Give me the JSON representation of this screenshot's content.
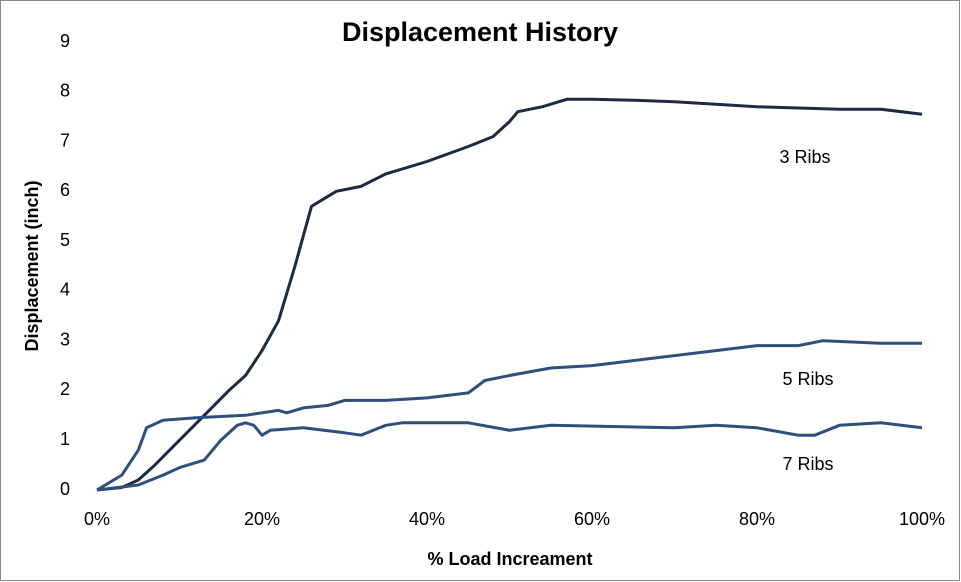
{
  "chart_data": {
    "type": "line",
    "title": "Displacement History",
    "xlabel": "% Load Increament",
    "ylabel": "Displacement (inch)",
    "xlim": [
      0,
      100
    ],
    "xticks": [
      {
        "value": 0,
        "label": "0%"
      },
      {
        "value": 20,
        "label": "20%"
      },
      {
        "value": 40,
        "label": "40%"
      },
      {
        "value": 60,
        "label": "60%"
      },
      {
        "value": 80,
        "label": "80%"
      },
      {
        "value": 100,
        "label": "100%"
      }
    ],
    "ylim": [
      0,
      9
    ],
    "yticks": [
      0,
      1,
      2,
      3,
      4,
      5,
      6,
      7,
      8,
      9
    ],
    "grid": false,
    "series": [
      {
        "name": "3 Ribs",
        "color": "#1c2a45",
        "x": [
          0,
          3,
          5,
          7,
          10,
          13,
          16,
          18,
          20,
          22,
          24,
          26,
          27,
          29,
          32,
          35,
          40,
          45,
          48,
          50,
          51,
          54,
          57,
          60,
          65,
          70,
          75,
          80,
          90,
          95,
          100
        ],
        "values": [
          0,
          0.05,
          0.2,
          0.5,
          1.0,
          1.5,
          2.0,
          2.3,
          2.8,
          3.4,
          4.5,
          5.7,
          5.8,
          6.0,
          6.1,
          6.35,
          6.6,
          6.9,
          7.1,
          7.4,
          7.6,
          7.7,
          7.85,
          7.85,
          7.83,
          7.8,
          7.75,
          7.7,
          7.65,
          7.65,
          7.55
        ]
      },
      {
        "name": "5 Ribs",
        "color": "#2e4f7c",
        "x": [
          0,
          3,
          5,
          6,
          8,
          12,
          18,
          22,
          23,
          25,
          28,
          30,
          35,
          40,
          45,
          47,
          50,
          55,
          60,
          65,
          70,
          75,
          80,
          85,
          88,
          95,
          100
        ],
        "values": [
          0,
          0.3,
          0.8,
          1.25,
          1.4,
          1.45,
          1.5,
          1.6,
          1.55,
          1.65,
          1.7,
          1.8,
          1.8,
          1.85,
          1.95,
          2.2,
          2.3,
          2.45,
          2.5,
          2.6,
          2.7,
          2.8,
          2.9,
          2.9,
          3.0,
          2.95,
          2.95
        ]
      },
      {
        "name": "7 Ribs",
        "color": "#2e4f7c",
        "x": [
          0,
          5,
          8,
          10,
          13,
          15,
          17,
          18,
          19,
          20,
          21,
          25,
          30,
          32,
          35,
          37,
          45,
          50,
          55,
          70,
          75,
          80,
          85,
          87,
          90,
          95,
          100
        ],
        "values": [
          0,
          0.1,
          0.3,
          0.45,
          0.6,
          1.0,
          1.3,
          1.35,
          1.3,
          1.1,
          1.2,
          1.25,
          1.15,
          1.1,
          1.3,
          1.35,
          1.35,
          1.2,
          1.3,
          1.25,
          1.3,
          1.25,
          1.1,
          1.1,
          1.3,
          1.35,
          1.25
        ]
      }
    ]
  }
}
